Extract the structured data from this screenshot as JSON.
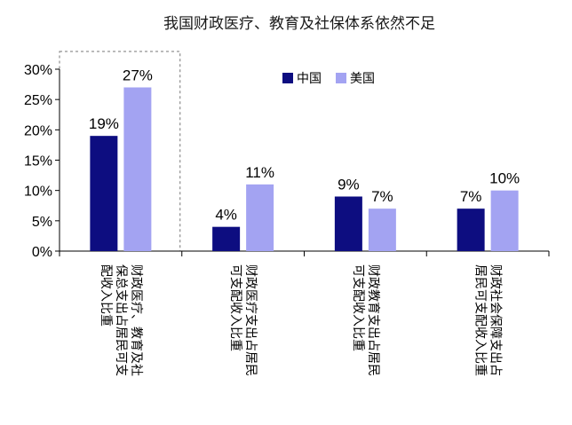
{
  "chart_data": {
    "type": "bar",
    "title": "我国财政医疗、教育及社保体系依然不足",
    "categories": [
      [
        "财政医疗、教育及社",
        "保总支出占居民可支",
        "配收入比重"
      ],
      [
        "财政医疗支出占居民",
        "可支配收入比重"
      ],
      [
        "财政教育支出占居民",
        "可支配收入比重"
      ],
      [
        "财政社会保障支出占",
        "居民可支配收入比重"
      ]
    ],
    "series": [
      {
        "name": "中国",
        "color": "#0d0d80",
        "values": [
          19,
          4,
          9,
          7
        ],
        "labels": [
          "19%",
          "4%",
          "9%",
          "7%"
        ]
      },
      {
        "name": "美国",
        "color": "#a3a3f2",
        "values": [
          27,
          11,
          7,
          10
        ],
        "labels": [
          "27%",
          "11%",
          "7%",
          "10%"
        ]
      }
    ],
    "ylim": [
      0,
      30
    ],
    "yticks": [
      "0%",
      "5%",
      "10%",
      "15%",
      "20%",
      "25%",
      "30%"
    ],
    "legend_position": "top-center",
    "grid": false,
    "highlight_category": 0
  }
}
